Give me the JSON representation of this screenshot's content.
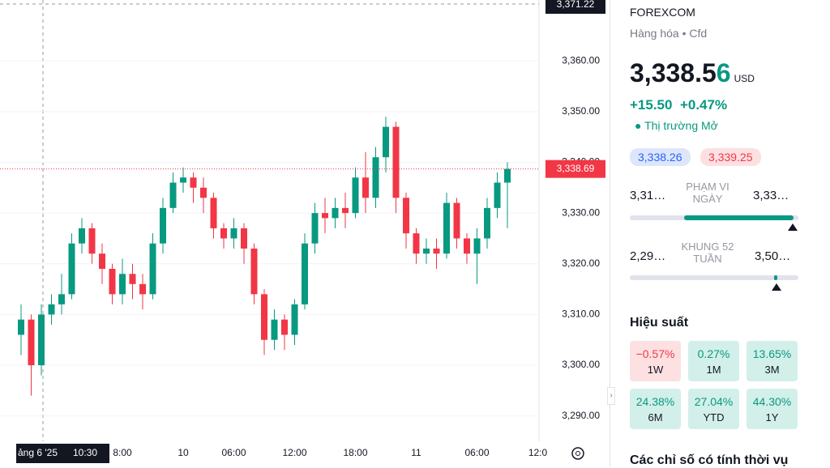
{
  "chart_data": {
    "type": "candlestick",
    "categories": [
      null,
      null,
      null,
      null,
      null,
      null,
      null,
      null,
      null,
      null,
      "8:00",
      null,
      null,
      null,
      null,
      null,
      "10",
      null,
      null,
      null,
      null,
      "06:00",
      null,
      null,
      null,
      null,
      null,
      "12:00",
      null,
      null,
      null,
      null,
      null,
      "18:00",
      null,
      null,
      null,
      null,
      null,
      "11",
      null,
      null,
      null,
      null,
      null,
      "06:00",
      null,
      null,
      null,
      null,
      null,
      "12:0"
    ],
    "open": [
      3306,
      3309,
      3300,
      3310,
      3312,
      3314,
      3324,
      3327,
      3322,
      3319,
      3314,
      3318,
      3316,
      3314,
      3324,
      3331,
      3336,
      3337,
      3335,
      3333,
      3327,
      3325,
      3327,
      3323,
      3314,
      3305,
      3309,
      3306,
      3312,
      3324,
      3330,
      3329,
      3331,
      3330,
      3337,
      3333,
      3341,
      3347,
      3333,
      3326,
      3322,
      3323,
      3322,
      3332,
      3325,
      3322,
      3325,
      3331,
      3336,
      null,
      null,
      null
    ],
    "high": [
      3312,
      3310,
      3312,
      3314,
      3318,
      3326,
      3329,
      3328,
      3324,
      3320,
      3321,
      3320,
      3318,
      3326,
      3333,
      3338,
      3339,
      3338,
      3337,
      3334,
      3328,
      3329,
      3328,
      3324,
      3315,
      3311,
      3310,
      3313,
      3326,
      3332,
      3333,
      3333,
      3334,
      3339,
      3342,
      3343,
      3349,
      3348,
      3334,
      3327,
      3325,
      3325,
      3334,
      3333,
      3326,
      3327,
      3333,
      3338,
      3340,
      null,
      null,
      null
    ],
    "low": [
      3302,
      3294,
      3298,
      3308,
      3310,
      3313,
      3322,
      3320,
      3316,
      3312,
      3312,
      3313,
      3311,
      3313,
      3322,
      3330,
      3334,
      3332,
      3330,
      3325,
      3323,
      3323,
      3320,
      3312,
      3302,
      3303,
      3303,
      3304,
      3311,
      3322,
      3326,
      3327,
      3327,
      3329,
      3330,
      3331,
      3338,
      3330,
      3323,
      3320,
      3320,
      3319,
      3321,
      3323,
      3320,
      3316,
      3323,
      3329,
      3327,
      null,
      null,
      null
    ],
    "close": [
      3309,
      3300,
      3310,
      3312,
      3314,
      3324,
      3327,
      3322,
      3319,
      3314,
      3318,
      3316,
      3314,
      3324,
      3331,
      3336,
      3337,
      3335,
      3333,
      3327,
      3325,
      3327,
      3323,
      3314,
      3305,
      3309,
      3306,
      3312,
      3324,
      3330,
      3329,
      3331,
      3330,
      3337,
      3333,
      3341,
      3347,
      3333,
      3326,
      3322,
      3323,
      3322,
      3332,
      3325,
      3322,
      3325,
      3331,
      3336,
      3338.69,
      null,
      null,
      null
    ],
    "ylim": [
      3287.4,
      3372
    ],
    "yticks": [
      {
        "value": 3290,
        "label": "3,290.00"
      },
      {
        "value": 3300,
        "label": "3,300.00"
      },
      {
        "value": 3310,
        "label": "3,310.00"
      },
      {
        "value": 3320,
        "label": "3,320.00"
      },
      {
        "value": 3330,
        "label": "3,330.00"
      },
      {
        "value": 3340,
        "label": "3,340.00"
      },
      {
        "value": 3350,
        "label": "3,350.00"
      },
      {
        "value": 3360,
        "label": "3,360.00"
      }
    ],
    "colors": {
      "up": "#089981",
      "down": "#f23645"
    },
    "last_price": {
      "value": 3338.69,
      "label": "3,338.69"
    },
    "crosshair": {
      "value": 3371.22,
      "label": "3,371.22",
      "date": "ảng 6 '25",
      "time": "10:30"
    }
  },
  "sidebar": {
    "exchange": "FOREXCOM",
    "category": "Hàng hóa",
    "kind": "Cfd",
    "price_main": "3,338.5",
    "price_last": "6",
    "currency": "USD",
    "change": "+15.50",
    "change_pct": "+0.47%",
    "status": "Thị trường Mở",
    "bid": "3,338.26",
    "ask": "3,339.25",
    "day_range": {
      "low": "3,31…",
      "label": "PHẠM VI NGÀY",
      "high": "3,33…"
    },
    "year_range": {
      "low": "2,29…",
      "label": "KHUNG 52 TUẦN",
      "high": "3,50…"
    },
    "performance_title": "Hiệu suất",
    "performance": [
      {
        "value": "−0.57%",
        "period": "1W"
      },
      {
        "value": "0.27%",
        "period": "1M"
      },
      {
        "value": "13.65%",
        "period": "3M"
      },
      {
        "value": "24.38%",
        "period": "6M"
      },
      {
        "value": "27.04%",
        "period": "YTD"
      },
      {
        "value": "44.30%",
        "period": "1Y"
      }
    ],
    "seasonal_title": "Các chỉ số có tính thời vụ"
  }
}
